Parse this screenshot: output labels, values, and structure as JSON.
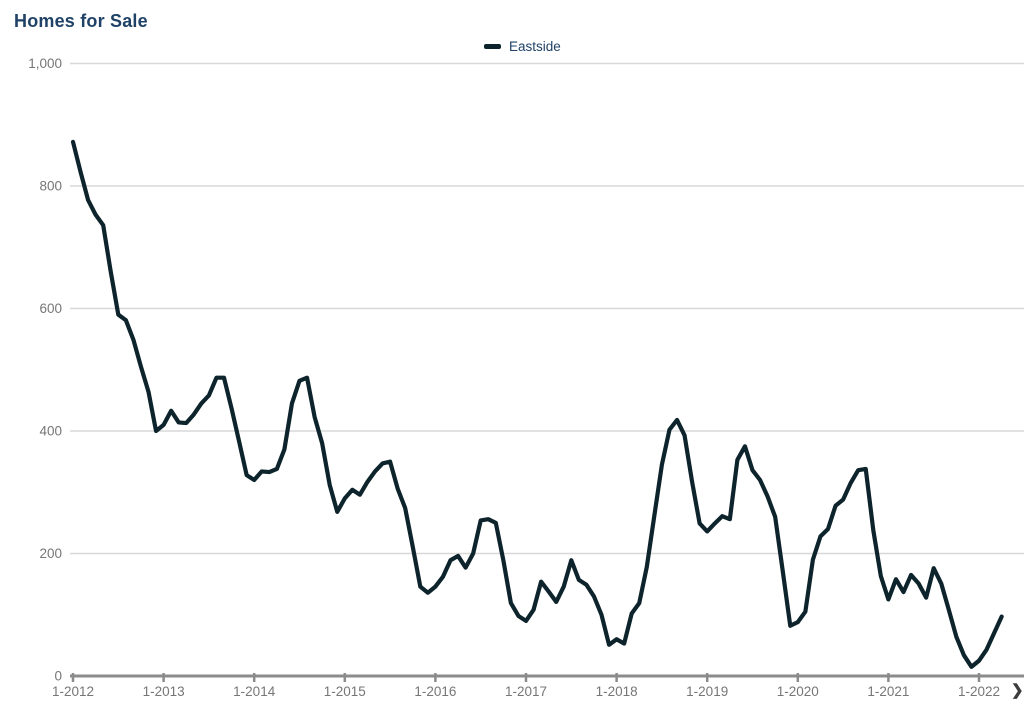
{
  "page": {
    "title": "Homes for Sale"
  },
  "legend": {
    "label": "Eastside",
    "swatch_color": "#0e242c"
  },
  "nav": {
    "next_arrow": "❯"
  },
  "colors": {
    "series_line": "#0e242c",
    "title_text": "#1f4266",
    "axis_line": "#8b8b8b",
    "tick_label": "#767676",
    "gridline": "#d8d8d8"
  },
  "chart_data": {
    "type": "line",
    "title": "Homes for Sale",
    "xlabel": "",
    "ylabel": "",
    "ylim": [
      0,
      1000
    ],
    "grid": "horizontal",
    "legend_position": "top-center",
    "y_ticks": [
      0,
      200,
      400,
      600,
      800,
      1000
    ],
    "y_tick_labels": [
      "0",
      "200",
      "400",
      "600",
      "800",
      "1,000"
    ],
    "x_tick_labels": [
      "1-2012",
      "1-2013",
      "1-2014",
      "1-2015",
      "1-2016",
      "1-2017",
      "1-2018",
      "1-2019",
      "1-2020",
      "1-2021",
      "1-2022"
    ],
    "months_per_tick": 12,
    "x_start_month": "1-2012",
    "x_end_month": "4-2022",
    "series": [
      {
        "name": "Eastside",
        "color": "#0e242c",
        "values": [
          872,
          823,
          777,
          753,
          736,
          660,
          590,
          581,
          549,
          505,
          464,
          400,
          410,
          433,
          414,
          413,
          427,
          445,
          458,
          487,
          487,
          437,
          383,
          328,
          320,
          334,
          333,
          338,
          370,
          445,
          482,
          487,
          423,
          380,
          312,
          268,
          290,
          304,
          296,
          317,
          334,
          347,
          350,
          306,
          274,
          211,
          146,
          136,
          146,
          162,
          189,
          196,
          177,
          200,
          254,
          256,
          250,
          189,
          119,
          98,
          90,
          108,
          154,
          138,
          121,
          146,
          189,
          157,
          149,
          130,
          100,
          51,
          60,
          53,
          102,
          119,
          178,
          262,
          345,
          402,
          418,
          393,
          317,
          249,
          236,
          249,
          261,
          256,
          353,
          375,
          336,
          320,
          293,
          260,
          172,
          82,
          88,
          105,
          190,
          228,
          240,
          278,
          288,
          315,
          336,
          338,
          238,
          163,
          125,
          158,
          137,
          165,
          151,
          128,
          176,
          151,
          108,
          64,
          34,
          15,
          25,
          43,
          70,
          97
        ]
      }
    ]
  }
}
